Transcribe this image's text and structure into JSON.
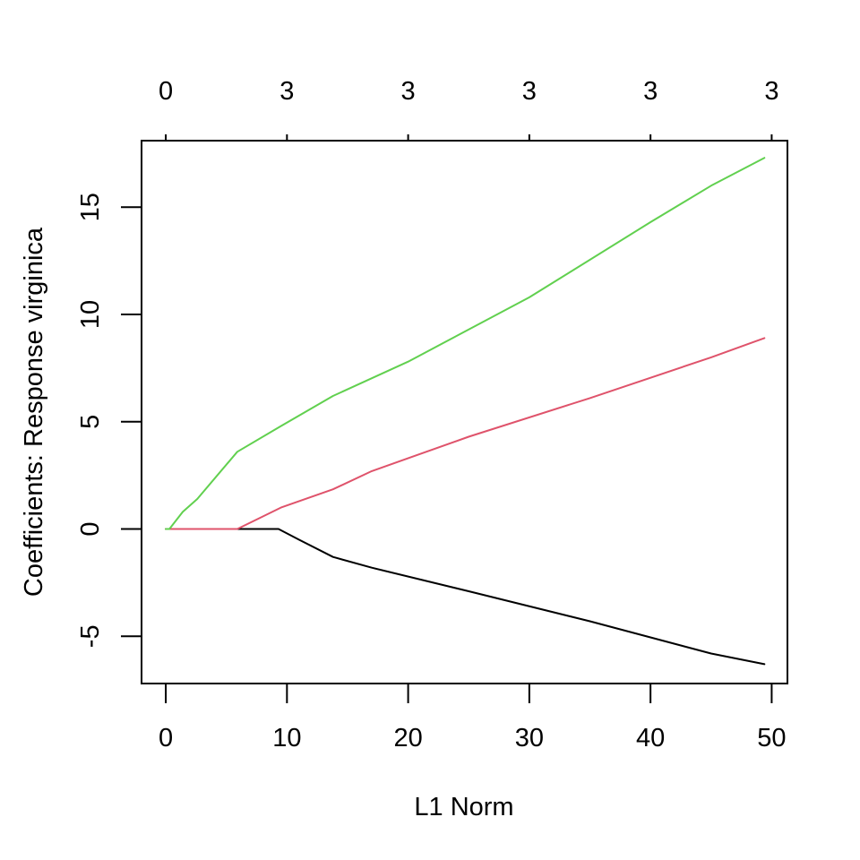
{
  "chart_data": {
    "type": "line",
    "title": "",
    "xlabel": "L1 Norm",
    "ylabel": "Coefficients: Response virginica",
    "xlim": [
      -2,
      51.3
    ],
    "ylim": [
      -7.2,
      18.1
    ],
    "x_ticks": [
      0,
      10,
      20,
      30,
      40,
      50
    ],
    "y_ticks": [
      -5,
      0,
      5,
      10,
      15
    ],
    "top_axis": {
      "positions": [
        0,
        10,
        20,
        30,
        40,
        50
      ],
      "labels": [
        "0",
        "3",
        "3",
        "3",
        "3",
        "3"
      ]
    },
    "grid": false,
    "legend": "none",
    "series": [
      {
        "color": "#000000",
        "x": [
          0,
          9.3,
          11,
          13.8,
          17,
          25,
          35,
          45,
          49.4
        ],
        "values": [
          0,
          0,
          -0.5,
          -1.3,
          -1.8,
          -2.9,
          -4.3,
          -5.8,
          -6.3
        ]
      },
      {
        "color": "#DF536B",
        "x": [
          0,
          5.9,
          9.5,
          13.8,
          17,
          25,
          35,
          45,
          49.4
        ],
        "values": [
          0,
          0,
          1.0,
          1.85,
          2.7,
          4.3,
          6.1,
          8.0,
          8.9
        ]
      },
      {
        "color": "#61D04F",
        "x": [
          0,
          0.3,
          1.4,
          2.6,
          5.9,
          9.5,
          13.8,
          20,
          30,
          40,
          45,
          49.4
        ],
        "values": [
          0,
          0,
          0.8,
          1.4,
          3.6,
          4.8,
          6.2,
          7.8,
          10.8,
          14.3,
          16.0,
          17.3
        ]
      }
    ]
  }
}
